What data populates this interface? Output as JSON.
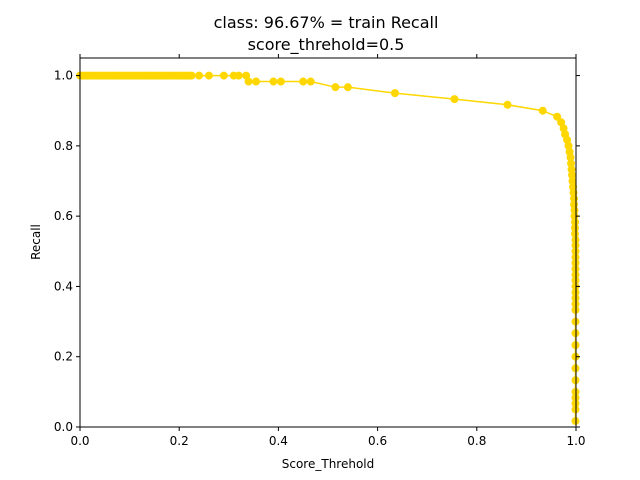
{
  "chart_data": {
    "type": "line",
    "title_line1": "class: 96.67% = train Recall",
    "title_line2": "score_threhold=0.5",
    "xlabel": "Score_Threhold",
    "ylabel": "Recall",
    "xlim": [
      0.0,
      1.0
    ],
    "ylim": [
      0.0,
      1.05
    ],
    "xticks": [
      "0.0",
      "0.2",
      "0.4",
      "0.6",
      "0.8",
      "1.0"
    ],
    "yticks": [
      "0.0",
      "0.2",
      "0.4",
      "0.6",
      "0.8",
      "1.0"
    ],
    "grid": false,
    "color": "#FFD700",
    "series": [
      {
        "x": [
          0.0,
          0.005,
          0.01,
          0.015,
          0.02,
          0.025,
          0.03,
          0.035,
          0.04,
          0.045,
          0.05,
          0.055,
          0.06,
          0.065,
          0.07,
          0.075,
          0.08,
          0.085,
          0.09,
          0.095,
          0.1,
          0.105,
          0.11,
          0.115,
          0.12,
          0.125,
          0.13,
          0.135,
          0.14,
          0.145,
          0.15,
          0.155,
          0.16,
          0.165,
          0.17,
          0.175,
          0.18,
          0.185,
          0.19,
          0.195,
          0.2,
          0.205,
          0.21,
          0.215,
          0.22,
          0.225,
          0.24,
          0.26,
          0.29,
          0.31,
          0.32,
          0.335,
          0.34,
          0.355,
          0.39,
          0.405,
          0.45,
          0.465,
          0.515,
          0.54,
          0.635,
          0.755,
          0.862,
          0.933,
          0.962,
          0.97,
          0.975,
          0.978,
          0.982,
          0.985,
          0.987,
          0.989,
          0.99,
          0.991,
          0.992,
          0.993,
          0.994,
          0.995,
          0.996,
          0.996,
          0.997,
          0.997,
          0.998,
          0.998,
          0.998,
          0.999,
          0.999,
          0.999,
          0.999,
          0.999,
          0.999,
          0.999,
          0.999,
          0.999,
          0.999,
          0.999,
          0.999,
          0.999,
          0.999,
          0.999,
          0.999,
          0.999,
          0.999,
          0.999,
          0.999,
          0.999,
          0.999,
          0.999,
          0.999
        ],
        "y": [
          1.0,
          1.0,
          1.0,
          1.0,
          1.0,
          1.0,
          1.0,
          1.0,
          1.0,
          1.0,
          1.0,
          1.0,
          1.0,
          1.0,
          1.0,
          1.0,
          1.0,
          1.0,
          1.0,
          1.0,
          1.0,
          1.0,
          1.0,
          1.0,
          1.0,
          1.0,
          1.0,
          1.0,
          1.0,
          1.0,
          1.0,
          1.0,
          1.0,
          1.0,
          1.0,
          1.0,
          1.0,
          1.0,
          1.0,
          1.0,
          1.0,
          1.0,
          1.0,
          1.0,
          1.0,
          1.0,
          1.0,
          1.0,
          1.0,
          1.0,
          1.0,
          1.0,
          0.983,
          0.983,
          0.983,
          0.983,
          0.983,
          0.983,
          0.967,
          0.967,
          0.95,
          0.933,
          0.917,
          0.9,
          0.883,
          0.867,
          0.85,
          0.833,
          0.817,
          0.8,
          0.783,
          0.767,
          0.75,
          0.733,
          0.717,
          0.7,
          0.683,
          0.667,
          0.65,
          0.633,
          0.617,
          0.6,
          0.583,
          0.567,
          0.55,
          0.533,
          0.517,
          0.5,
          0.483,
          0.467,
          0.45,
          0.433,
          0.417,
          0.4,
          0.383,
          0.367,
          0.35,
          0.333,
          0.3,
          0.267,
          0.233,
          0.2,
          0.167,
          0.133,
          0.1,
          0.083,
          0.067,
          0.05,
          0.017
        ]
      }
    ]
  }
}
